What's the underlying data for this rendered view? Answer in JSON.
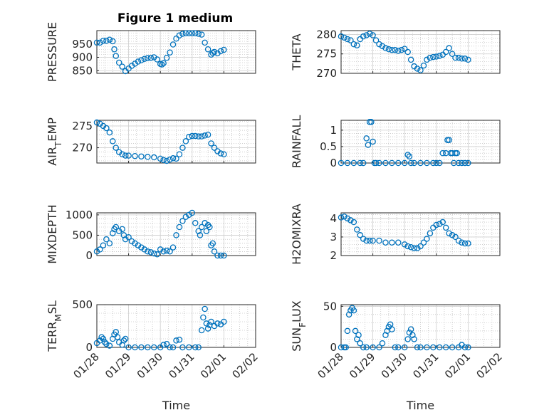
{
  "title": "Figure 1 medium",
  "colors": {
    "marker": "#0072BD",
    "axis": "#262626",
    "grid": "#b0b0b0"
  },
  "chart_data": [
    {
      "type": "scatter",
      "ylabel": "PRESSURE",
      "yticks": [
        850,
        900,
        950
      ],
      "ylim": [
        840,
        1000
      ],
      "xticks_shown": false,
      "x": [
        0.0,
        0.1,
        0.2,
        0.3,
        0.4,
        0.5,
        0.55,
        0.6,
        0.7,
        0.8,
        0.9,
        1.0,
        1.1,
        1.2,
        1.3,
        1.4,
        1.5,
        1.6,
        1.7,
        1.8,
        1.9,
        2.0,
        2.05,
        2.1,
        2.2,
        2.3,
        2.4,
        2.5,
        2.6,
        2.7,
        2.8,
        2.9,
        3.0,
        3.1,
        3.2,
        3.3,
        3.4,
        3.5,
        3.6,
        3.65,
        3.7,
        3.8,
        3.9,
        4.0
      ],
      "y": [
        955,
        955,
        962,
        962,
        966,
        960,
        930,
        905,
        880,
        865,
        848,
        858,
        868,
        876,
        884,
        889,
        894,
        897,
        898,
        900,
        892,
        875,
        873,
        878,
        898,
        918,
        948,
        970,
        982,
        988,
        990,
        990,
        990,
        990,
        988,
        985,
        955,
        930,
        910,
        916,
        920,
        915,
        923,
        928
      ]
    },
    {
      "type": "scatter",
      "ylabel": "THETA",
      "yticks": [
        270,
        275,
        280
      ],
      "ylim": [
        270,
        281
      ],
      "xticks_shown": false,
      "x": [
        0.0,
        0.1,
        0.2,
        0.3,
        0.4,
        0.5,
        0.6,
        0.7,
        0.8,
        0.9,
        1.0,
        1.1,
        1.2,
        1.3,
        1.4,
        1.5,
        1.6,
        1.7,
        1.8,
        1.9,
        2.0,
        2.1,
        2.2,
        2.3,
        2.4,
        2.5,
        2.6,
        2.7,
        2.8,
        2.9,
        3.0,
        3.1,
        3.2,
        3.3,
        3.4,
        3.5,
        3.6,
        3.7,
        3.8,
        3.9,
        4.0
      ],
      "y": [
        279.5,
        279.2,
        278.8,
        278.5,
        277.5,
        277.2,
        278.8,
        279.5,
        279.8,
        280.2,
        279.8,
        278.5,
        277.5,
        277,
        276.5,
        276.2,
        276,
        276,
        275.8,
        276,
        276.3,
        275.5,
        273.5,
        271.8,
        271.2,
        270.8,
        272,
        273.5,
        274,
        274.2,
        274.3,
        274.5,
        274.8,
        275.5,
        276.5,
        275,
        274,
        274,
        273.8,
        273.8,
        273.5
      ]
    },
    {
      "type": "scatter",
      "ylabel": "AIR_TEMP",
      "yticks": [
        270,
        275
      ],
      "ylim": [
        266.5,
        276.3
      ],
      "xticks_shown": false,
      "x": [
        0.0,
        0.1,
        0.2,
        0.3,
        0.4,
        0.5,
        0.6,
        0.7,
        0.8,
        0.9,
        1.0,
        1.2,
        1.4,
        1.6,
        1.8,
        2.0,
        2.1,
        2.2,
        2.3,
        2.4,
        2.5,
        2.6,
        2.7,
        2.8,
        2.9,
        3.0,
        3.1,
        3.2,
        3.3,
        3.4,
        3.5,
        3.6,
        3.7,
        3.8,
        3.9,
        4.0
      ],
      "y": [
        275.8,
        275.5,
        275,
        274.5,
        273.5,
        271.5,
        270,
        269,
        268.5,
        268.2,
        268.2,
        268.1,
        268,
        267.9,
        267.8,
        267.5,
        267.2,
        267,
        267.3,
        267.6,
        267.5,
        268.5,
        270,
        271.5,
        272.5,
        272.7,
        272.7,
        272.6,
        272.6,
        272.8,
        273,
        271,
        270,
        269.2,
        268.7,
        268.5
      ]
    },
    {
      "type": "scatter",
      "ylabel": "RAINFALL",
      "yticks": [
        0,
        0.5,
        1
      ],
      "ylim": [
        0,
        1.3
      ],
      "xticks_shown": false,
      "x": [
        0.0,
        0.2,
        0.4,
        0.6,
        0.7,
        0.8,
        0.85,
        0.9,
        0.95,
        1.0,
        1.05,
        1.1,
        1.2,
        1.4,
        1.6,
        1.8,
        2.0,
        2.1,
        2.15,
        2.2,
        2.3,
        2.5,
        2.7,
        2.9,
        3.0,
        3.1,
        3.2,
        3.3,
        3.35,
        3.4,
        3.45,
        3.5,
        3.55,
        3.6,
        3.65,
        3.7,
        3.8,
        3.9,
        4.0
      ],
      "y": [
        0,
        0,
        0,
        0,
        0,
        0.75,
        0.55,
        1.25,
        1.25,
        0.65,
        0,
        0,
        0,
        0,
        0,
        0,
        0,
        0.25,
        0.2,
        0,
        0,
        0,
        0,
        0,
        0,
        0,
        0.3,
        0.3,
        0.7,
        0.7,
        0.3,
        0.3,
        0,
        0.3,
        0.3,
        0,
        0,
        0,
        0
      ]
    },
    {
      "type": "scatter",
      "ylabel": "MIXDEPTH",
      "yticks": [
        0,
        500,
        1000
      ],
      "ylim": [
        0,
        1050
      ],
      "xticks_shown": false,
      "x": [
        0.0,
        0.1,
        0.2,
        0.3,
        0.4,
        0.5,
        0.55,
        0.6,
        0.7,
        0.8,
        0.85,
        0.9,
        1.0,
        1.1,
        1.2,
        1.3,
        1.4,
        1.5,
        1.6,
        1.7,
        1.8,
        1.9,
        2.0,
        2.1,
        2.2,
        2.3,
        2.4,
        2.5,
        2.6,
        2.7,
        2.8,
        2.9,
        3.0,
        3.1,
        3.2,
        3.25,
        3.3,
        3.4,
        3.45,
        3.5,
        3.55,
        3.6,
        3.65,
        3.7,
        3.8,
        3.9,
        4.0
      ],
      "y": [
        100,
        150,
        250,
        400,
        300,
        550,
        650,
        700,
        600,
        650,
        500,
        400,
        450,
        350,
        300,
        250,
        200,
        150,
        100,
        80,
        50,
        30,
        150,
        100,
        120,
        100,
        200,
        500,
        700,
        850,
        950,
        1000,
        1050,
        800,
        600,
        500,
        700,
        800,
        600,
        750,
        700,
        250,
        300,
        100,
        0,
        0,
        0
      ]
    },
    {
      "type": "scatter",
      "ylabel": "H2OMIXRA",
      "yticks": [
        2,
        3,
        4
      ],
      "ylim": [
        2,
        4.3
      ],
      "xticks_shown": false,
      "x": [
        0.0,
        0.1,
        0.2,
        0.3,
        0.4,
        0.5,
        0.6,
        0.7,
        0.8,
        0.9,
        1.0,
        1.2,
        1.4,
        1.6,
        1.8,
        2.0,
        2.1,
        2.2,
        2.3,
        2.4,
        2.5,
        2.6,
        2.7,
        2.8,
        2.9,
        3.0,
        3.1,
        3.2,
        3.3,
        3.4,
        3.5,
        3.6,
        3.7,
        3.8,
        3.9,
        4.0
      ],
      "y": [
        4.05,
        4.1,
        4,
        3.9,
        3.8,
        3.4,
        3.1,
        2.9,
        2.8,
        2.8,
        2.8,
        2.8,
        2.7,
        2.7,
        2.7,
        2.6,
        2.5,
        2.45,
        2.4,
        2.4,
        2.5,
        2.7,
        2.9,
        3.2,
        3.5,
        3.65,
        3.7,
        3.8,
        3.5,
        3.2,
        3.1,
        3,
        2.8,
        2.7,
        2.65,
        2.65
      ]
    },
    {
      "type": "scatter",
      "ylabel": "TERR_MSL",
      "yticks": [
        0,
        500
      ],
      "ylim": [
        0,
        500
      ],
      "xticks_shown": true,
      "xlabel": "Time",
      "xtick_labels": [
        "01/28",
        "01/29",
        "01/30",
        "01/31",
        "02/01",
        "02/02"
      ],
      "xlim": [
        0,
        5
      ],
      "x": [
        0.0,
        0.1,
        0.15,
        0.2,
        0.25,
        0.3,
        0.4,
        0.5,
        0.55,
        0.6,
        0.65,
        0.7,
        0.8,
        0.85,
        0.9,
        1.0,
        1.2,
        1.4,
        1.6,
        1.8,
        2.0,
        2.1,
        2.2,
        2.3,
        2.4,
        2.5,
        2.6,
        2.7,
        2.9,
        3.1,
        3.2,
        3.3,
        3.35,
        3.4,
        3.45,
        3.5,
        3.55,
        3.6,
        3.7,
        3.8,
        3.9,
        4.0
      ],
      "y": [
        50,
        80,
        120,
        100,
        60,
        40,
        20,
        100,
        150,
        180,
        120,
        60,
        30,
        80,
        100,
        0,
        0,
        0,
        0,
        0,
        0,
        30,
        40,
        0,
        0,
        80,
        90,
        0,
        0,
        0,
        0,
        200,
        350,
        450,
        280,
        220,
        260,
        300,
        250,
        280,
        270,
        300
      ]
    },
    {
      "type": "scatter",
      "ylabel": "SUN_FLUX",
      "yticks": [
        0,
        50
      ],
      "ylim": [
        0,
        52
      ],
      "xticks_shown": true,
      "xlabel": "Time",
      "xtick_labels": [
        "01/28",
        "01/29",
        "01/30",
        "01/31",
        "02/01",
        "02/02"
      ],
      "xlim": [
        0,
        5
      ],
      "x": [
        0.0,
        0.1,
        0.15,
        0.2,
        0.25,
        0.3,
        0.35,
        0.4,
        0.45,
        0.5,
        0.55,
        0.6,
        0.7,
        0.8,
        1.0,
        1.2,
        1.3,
        1.4,
        1.45,
        1.5,
        1.55,
        1.6,
        1.7,
        1.8,
        2.0,
        2.1,
        2.15,
        2.2,
        2.25,
        2.3,
        2.4,
        2.5,
        2.7,
        2.9,
        3.1,
        3.3,
        3.5,
        3.7,
        3.8,
        3.9,
        4.0
      ],
      "y": [
        0,
        0,
        0,
        20,
        40,
        45,
        48,
        45,
        20,
        10,
        15,
        5,
        0,
        0,
        0,
        0,
        5,
        15,
        20,
        25,
        28,
        22,
        0,
        0,
        0,
        10,
        18,
        22,
        15,
        10,
        0,
        0,
        0,
        0,
        0,
        0,
        0,
        0,
        3,
        0,
        0
      ]
    }
  ]
}
